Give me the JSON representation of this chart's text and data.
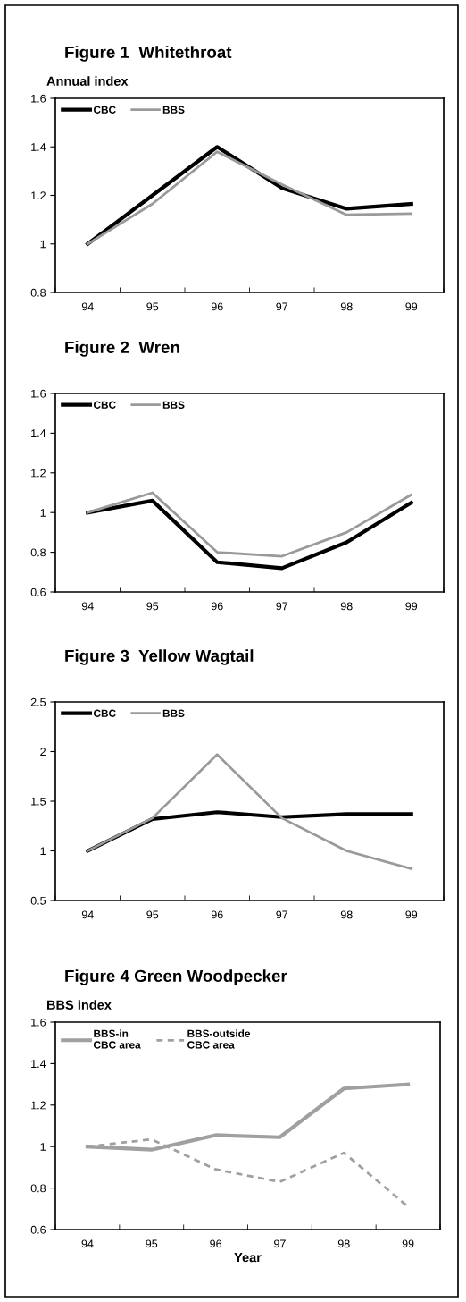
{
  "chart_data": [
    {
      "type": "line",
      "title": "Figure 1  Whitethroat",
      "ylabel": "Annual index",
      "categories": [
        "94",
        "95",
        "96",
        "97",
        "98",
        "99"
      ],
      "series": [
        {
          "name": "CBC",
          "color": "#000000",
          "values": [
            1.0,
            1.2,
            1.4,
            1.23,
            1.145,
            1.165
          ]
        },
        {
          "name": "BBS",
          "color": "#9a9a9a",
          "values": [
            1.0,
            1.165,
            1.38,
            1.245,
            1.12,
            1.125
          ]
        }
      ],
      "ylim": [
        0.8,
        1.6
      ],
      "yticks": [
        0.8,
        1,
        1.2,
        1.4,
        1.6
      ],
      "legend": "top left",
      "grid": false
    },
    {
      "type": "line",
      "title": "Figure 2  Wren",
      "categories": [
        "94",
        "95",
        "96",
        "97",
        "98",
        "99"
      ],
      "series": [
        {
          "name": "CBC",
          "color": "#000000",
          "values": [
            1.0,
            1.06,
            0.75,
            0.72,
            0.85,
            1.05
          ]
        },
        {
          "name": "BBS",
          "color": "#9a9a9a",
          "values": [
            1.0,
            1.1,
            0.8,
            0.78,
            0.9,
            1.09
          ]
        }
      ],
      "ylim": [
        0.6,
        1.6
      ],
      "yticks": [
        0.6,
        0.8,
        1,
        1.2,
        1.4,
        1.6
      ],
      "legend": "top left",
      "grid": false
    },
    {
      "type": "line",
      "title": "Figure 3  Yellow Wagtail",
      "categories": [
        "94",
        "95",
        "96",
        "97",
        "98",
        "99"
      ],
      "series": [
        {
          "name": "CBC",
          "color": "#000000",
          "values": [
            1.0,
            1.32,
            1.39,
            1.34,
            1.37,
            1.37
          ]
        },
        {
          "name": "BBS",
          "color": "#9a9a9a",
          "values": [
            1.0,
            1.33,
            1.97,
            1.33,
            1.0,
            0.82
          ]
        }
      ],
      "ylim": [
        0.5,
        2.5
      ],
      "yticks": [
        0.5,
        1,
        1.5,
        2,
        2.5
      ],
      "legend": "top left",
      "grid": false
    },
    {
      "type": "line",
      "title": "Figure 4 Green Woodpecker",
      "ylabel": "BBS index",
      "xlabel": "Year",
      "categories": [
        "94",
        "95",
        "96",
        "97",
        "98",
        "99"
      ],
      "series": [
        {
          "name": "BBS-in\nCBC area",
          "color": "#a0a0a0",
          "line_style": "solid",
          "values": [
            1.0,
            0.985,
            1.055,
            1.045,
            1.28,
            1.3
          ]
        },
        {
          "name": "BBS-outside\nCBC area",
          "color": "#a0a0a0",
          "line_style": "dashed",
          "values": [
            1.0,
            1.035,
            0.89,
            0.83,
            0.97,
            0.71
          ]
        }
      ],
      "ylim": [
        0.6,
        1.6
      ],
      "yticks": [
        0.6,
        0.8,
        1,
        1.2,
        1.4,
        1.6
      ],
      "legend": "top left",
      "grid": false
    }
  ]
}
